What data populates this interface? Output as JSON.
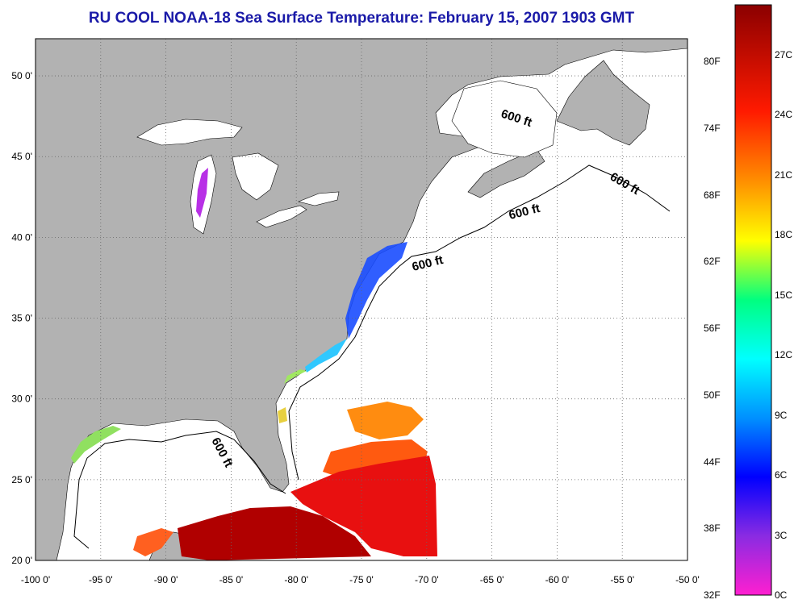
{
  "title": "RU COOL  NOAA-18  Sea Surface Temperature:  February 15, 2007 1903 GMT",
  "map": {
    "lon_range": [
      -100,
      -50
    ],
    "lat_range": [
      20,
      52.3
    ],
    "lon_ticks": [
      "-100 0'",
      "-95 0'",
      "-90 0'",
      "-85 0'",
      "-80 0'",
      "-75 0'",
      "-70 0'",
      "-65 0'",
      "-60 0'",
      "-55 0'",
      "-50 0'"
    ],
    "lat_ticks": [
      "20 0'",
      "25 0'",
      "30 0'",
      "35 0'",
      "40 0'",
      "45 0'",
      "50 0'"
    ],
    "contour_labels": [
      "600 ft",
      "600 ft",
      "600 ft",
      "600 ft",
      "600 ft"
    ],
    "land_color": "#b2b2b2",
    "ocean_color": "#ffffff",
    "grid": "dotted"
  },
  "colorbar": {
    "fahrenheit_labels": [
      "80F",
      "74F",
      "68F",
      "62F",
      "56F",
      "50F",
      "44F",
      "38F",
      "32F"
    ],
    "celsius_labels": [
      "27C",
      "24C",
      "21C",
      "18C",
      "15C",
      "12C",
      "9C",
      "6C",
      "3C",
      "0C"
    ],
    "celsius_range": [
      0,
      29.5
    ],
    "colors": [
      "#ff1fd0",
      "#8a2be2",
      "#0000ff",
      "#00a0ff",
      "#00ffff",
      "#00ff80",
      "#ffff00",
      "#ff8c00",
      "#ff0000",
      "#8b0000"
    ]
  }
}
